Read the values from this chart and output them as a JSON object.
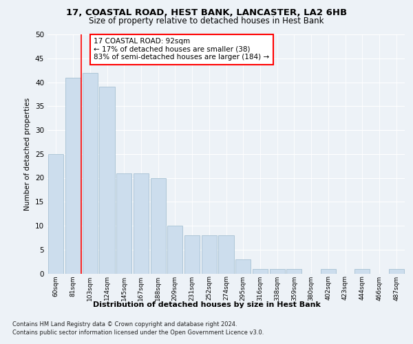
{
  "title1": "17, COASTAL ROAD, HEST BANK, LANCASTER, LA2 6HB",
  "title2": "Size of property relative to detached houses in Hest Bank",
  "xlabel": "Distribution of detached houses by size in Hest Bank",
  "ylabel": "Number of detached properties",
  "categories": [
    "60sqm",
    "81sqm",
    "103sqm",
    "124sqm",
    "145sqm",
    "167sqm",
    "188sqm",
    "209sqm",
    "231sqm",
    "252sqm",
    "274sqm",
    "295sqm",
    "316sqm",
    "338sqm",
    "359sqm",
    "380sqm",
    "402sqm",
    "423sqm",
    "444sqm",
    "466sqm",
    "487sqm"
  ],
  "values": [
    25,
    41,
    42,
    39,
    21,
    21,
    20,
    10,
    8,
    8,
    8,
    3,
    1,
    1,
    1,
    0,
    1,
    0,
    1,
    0,
    1
  ],
  "bar_color": "#ccdded",
  "bar_edge_color": "#9ab8cc",
  "annotation_text": "17 COASTAL ROAD: 92sqm\n← 17% of detached houses are smaller (38)\n83% of semi-detached houses are larger (184) →",
  "annotation_box_color": "white",
  "annotation_box_edge_color": "red",
  "marker_line_color": "red",
  "ylim": [
    0,
    50
  ],
  "yticks": [
    0,
    5,
    10,
    15,
    20,
    25,
    30,
    35,
    40,
    45,
    50
  ],
  "footer1": "Contains HM Land Registry data © Crown copyright and database right 2024.",
  "footer2": "Contains public sector information licensed under the Open Government Licence v3.0.",
  "bg_color": "#edf2f7",
  "plot_bg_color": "#edf2f7",
  "title1_fontsize": 9.5,
  "title2_fontsize": 8.5
}
